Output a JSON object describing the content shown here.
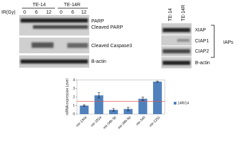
{
  "left_blot": {
    "groups": [
      "TE-14",
      "TE-14R"
    ],
    "dose_label": "IR(Gy)",
    "doses": [
      "0",
      "6",
      "12",
      "0",
      "6",
      "12"
    ],
    "rows": [
      "PARP",
      "Cleaved PARP",
      "Cleaved Caspase3",
      "B-actin"
    ]
  },
  "right_blot": {
    "groups": [
      "TE-14",
      "TE-14R"
    ],
    "rows": [
      "XIAP",
      "CIAP1",
      "CIAP2",
      "B-actin"
    ],
    "bracket_label": "IAPs"
  },
  "chart_data": {
    "type": "bar",
    "y_label": "mRNA expression Level",
    "categories": [
      "mir-130a",
      "mir-181a",
      "mir-34b-3p",
      "mir-34b-5p",
      "mir-340",
      "mir-1251"
    ],
    "series": [
      {
        "name": "14R/14",
        "color": "#4f81bd",
        "values": [
          1.0,
          2.2,
          0.5,
          0.6,
          1.8,
          3.8
        ],
        "errors": [
          0.1,
          0.3,
          0.15,
          0.2,
          0.2,
          0.05
        ]
      }
    ],
    "reference_line": 1.5,
    "reference_color": "#d9534f",
    "ylim": [
      0,
      4
    ],
    "yticks": [
      0,
      1,
      2,
      3,
      4
    ],
    "legend": "right"
  }
}
